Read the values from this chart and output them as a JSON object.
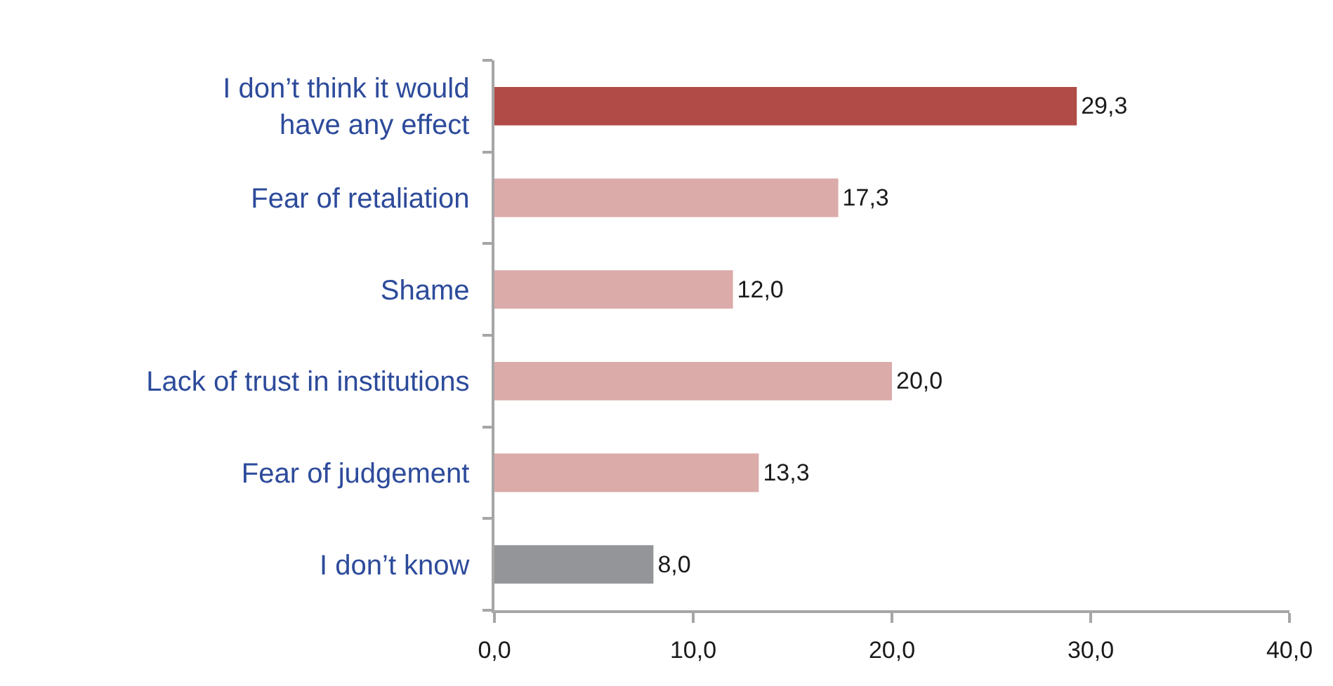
{
  "chart_data": {
    "type": "bar",
    "orientation": "horizontal",
    "categories": [
      "I don’t think it would\nhave any effect",
      "Fear of retaliation",
      "Shame",
      "Lack of trust in institutions",
      "Fear of judgement",
      "I don’t know"
    ],
    "values": [
      29.3,
      17.3,
      12.0,
      20.0,
      13.3,
      8.0
    ],
    "colors": [
      "#b04b47",
      "#dbaba9",
      "#dbaba9",
      "#dbaba9",
      "#dbaba9",
      "#939598"
    ],
    "value_labels": [
      "29,3",
      "17,3",
      "12,0",
      "20,0",
      "13,3",
      "8,0"
    ],
    "xlim": [
      0,
      40
    ],
    "xticks": [
      {
        "value": 0,
        "label": "0,0"
      },
      {
        "value": 10,
        "label": "10,0"
      },
      {
        "value": 20,
        "label": "20,0"
      },
      {
        "value": 30,
        "label": "30,0"
      },
      {
        "value": 40,
        "label": "40,0"
      }
    ],
    "grid": false
  }
}
